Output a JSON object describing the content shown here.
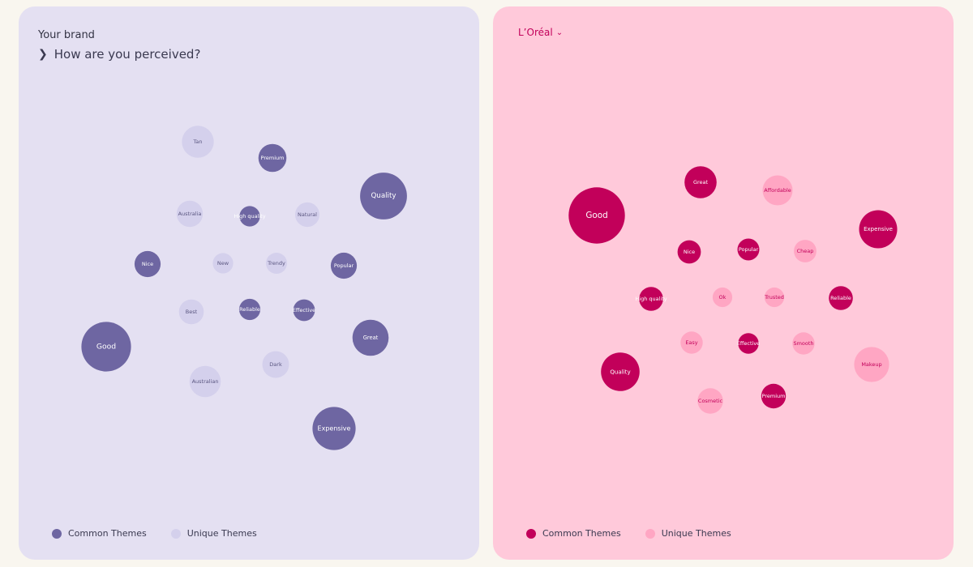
{
  "left_panel": {
    "brand_label": "Your brand",
    "question": "How are you perceived?",
    "legend": {
      "common": "Common Themes",
      "unique": "Unique Themes"
    }
  },
  "right_panel": {
    "brand_name": "L’Oréal",
    "legend": {
      "common": "Common Themes",
      "unique": "Unique Themes"
    }
  },
  "colors": {
    "left_common": "#6e66a2",
    "left_unique": "#d4d0ec",
    "left_common_text": "#ffffff",
    "left_unique_text": "#5a5680",
    "right_common": "#c2005a",
    "right_unique": "#ffa6c3",
    "right_common_text": "#ffffff",
    "right_unique_text": "#c2005a"
  },
  "icons": {
    "expand": "chevron-right-icon",
    "dropdown": "chevron-down-icon"
  },
  "chart_data": [
    {
      "type": "bubble",
      "brand": "Your brand",
      "bubbles": [
        {
          "label": "Tan",
          "group": "unique",
          "size": 1.22
        },
        {
          "label": "Premium",
          "group": "common",
          "size": 0.94
        },
        {
          "label": "Quality",
          "group": "common",
          "size": 2.62
        },
        {
          "label": "Australia",
          "group": "unique",
          "size": 0.82
        },
        {
          "label": "High quality",
          "group": "common",
          "size": 0.5
        },
        {
          "label": "Natural",
          "group": "unique",
          "size": 0.72
        },
        {
          "label": "Nice",
          "group": "common",
          "size": 0.81
        },
        {
          "label": "New",
          "group": "unique",
          "size": 0.5
        },
        {
          "label": "Trendy",
          "group": "unique",
          "size": 0.53
        },
        {
          "label": "Popular",
          "group": "common",
          "size": 0.81
        },
        {
          "label": "Best",
          "group": "unique",
          "size": 0.74
        },
        {
          "label": "Reliable",
          "group": "common",
          "size": 0.54
        },
        {
          "label": "Effective",
          "group": "common",
          "size": 0.56
        },
        {
          "label": "Good",
          "group": "common",
          "size": 2.95
        },
        {
          "label": "Great",
          "group": "common",
          "size": 1.56
        },
        {
          "label": "Dark",
          "group": "unique",
          "size": 0.86
        },
        {
          "label": "Australian",
          "group": "unique",
          "size": 1.17
        },
        {
          "label": "Expensive",
          "group": "common",
          "size": 2.23
        }
      ]
    },
    {
      "type": "bubble",
      "brand": "L’Oréal",
      "bubbles": [
        {
          "label": "Good",
          "group": "common",
          "size": 3.78
        },
        {
          "label": "Great",
          "group": "common",
          "size": 1.23
        },
        {
          "label": "Affordable",
          "group": "unique",
          "size": 1.08
        },
        {
          "label": "Expensive",
          "group": "common",
          "size": 1.73
        },
        {
          "label": "Nice",
          "group": "common",
          "size": 0.65
        },
        {
          "label": "Popular",
          "group": "common",
          "size": 0.57
        },
        {
          "label": "Cheap",
          "group": "unique",
          "size": 0.61
        },
        {
          "label": "High quality",
          "group": "common",
          "size": 0.69
        },
        {
          "label": "Ok",
          "group": "unique",
          "size": 0.46
        },
        {
          "label": "Trusted",
          "group": "unique",
          "size": 0.46
        },
        {
          "label": "Reliable",
          "group": "common",
          "size": 0.69
        },
        {
          "label": "Quality",
          "group": "common",
          "size": 1.78
        },
        {
          "label": "Easy",
          "group": "unique",
          "size": 0.59
        },
        {
          "label": "Effective",
          "group": "common",
          "size": 0.51
        },
        {
          "label": "Smooth",
          "group": "unique",
          "size": 0.59
        },
        {
          "label": "Makeup",
          "group": "unique",
          "size": 1.46
        },
        {
          "label": "Cosmetic",
          "group": "unique",
          "size": 0.77
        },
        {
          "label": "Premium",
          "group": "common",
          "size": 0.73
        }
      ]
    }
  ]
}
